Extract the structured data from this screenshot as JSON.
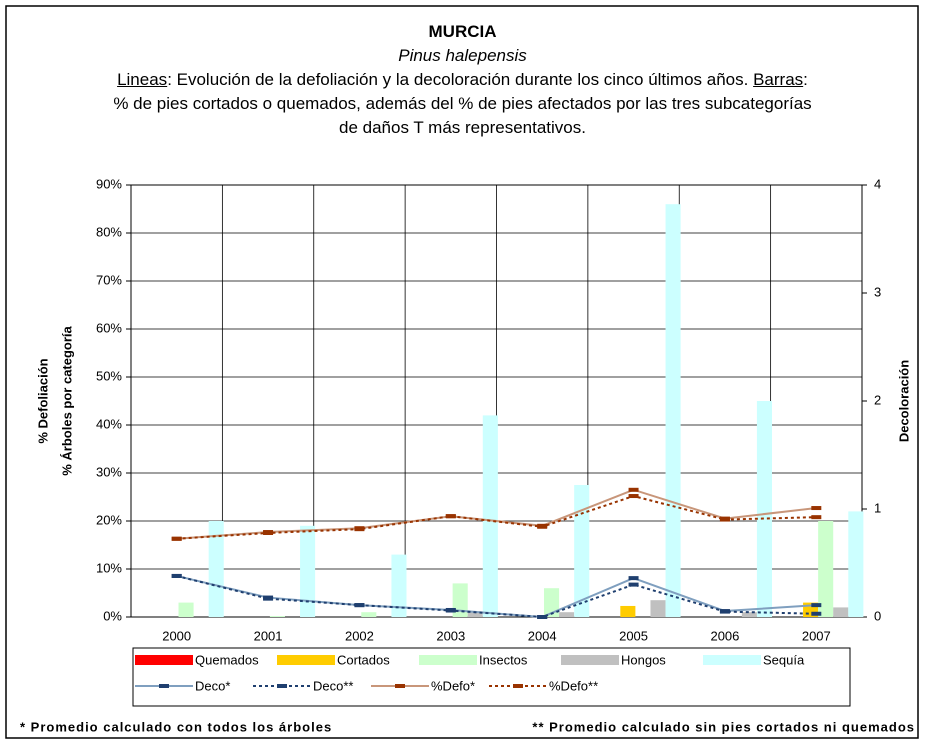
{
  "chart_data": {
    "type": "bar-line",
    "title": "MURCIA",
    "subtitle": "Pinus halepensis",
    "description": [
      "Lineas",
      ": Evolución de la defoliación y la decoloración durante los cinco últimos años. ",
      "Barras",
      ": % de pies cortados o quemados, además del % de pies afectados por las tres subcategorías de daños T más representativos."
    ],
    "ylabel": [
      "% Defoliación",
      "% Árboles por categoría"
    ],
    "y2label": "Decoloración",
    "categories": [
      "2000",
      "2001",
      "2002",
      "2003",
      "2004",
      "2005",
      "2006",
      "2007"
    ],
    "ylim": [
      0,
      90
    ],
    "yticks": [
      {
        "value": 0,
        "label": "0%"
      },
      {
        "value": 10,
        "label": "10%"
      },
      {
        "value": 20,
        "label": "20%"
      },
      {
        "value": 30,
        "label": "30%"
      },
      {
        "value": 40,
        "label": "40%"
      },
      {
        "value": 50,
        "label": "50%"
      },
      {
        "value": 60,
        "label": "60%"
      },
      {
        "value": 70,
        "label": "70%"
      },
      {
        "value": 80,
        "label": "80%"
      },
      {
        "value": 90,
        "label": "90%"
      }
    ],
    "y2lim": [
      0,
      4
    ],
    "y2ticks": [
      0,
      1,
      2,
      3,
      4
    ],
    "grid": true,
    "series": [
      {
        "name": "Quemados",
        "kind": "bar",
        "color": "#ff0000",
        "values": [
          0,
          0,
          0,
          0,
          0,
          0,
          0,
          0
        ]
      },
      {
        "name": "Cortados",
        "kind": "bar",
        "color": "#ffcc00",
        "values": [
          0,
          0,
          0,
          0,
          0,
          2.3,
          0,
          3
        ]
      },
      {
        "name": "Insectos",
        "kind": "bar",
        "color": "#ccffcc",
        "values": [
          3,
          0.2,
          1,
          7,
          6,
          0,
          0,
          20
        ]
      },
      {
        "name": "Hongos",
        "kind": "bar",
        "color": "#c0c0c0",
        "values": [
          0,
          0,
          0,
          1,
          1,
          3.5,
          1,
          2
        ]
      },
      {
        "name": "Sequía",
        "kind": "bar",
        "color": "#ccffff",
        "values": [
          20,
          19,
          13,
          42,
          27.5,
          86,
          45,
          22
        ]
      },
      {
        "name": "Deco*",
        "kind": "line",
        "axis": "y2",
        "color": "#7f9fbf",
        "marker_color": "#1f3f6f",
        "dash": false,
        "values": [
          0.38,
          0.18,
          0.11,
          0.065,
          0,
          0.36,
          0.055,
          0.11
        ]
      },
      {
        "name": "Deco**",
        "kind": "line",
        "axis": "y2",
        "color": "#1f3f6f",
        "marker_color": "#1f3f6f",
        "dash": true,
        "values": [
          0.38,
          0.17,
          0.11,
          0.06,
          0,
          0.3,
          0.05,
          0.03
        ]
      },
      {
        "name": "%Defo*",
        "kind": "line",
        "color": "#c8967a",
        "marker_color": "#993300",
        "dash": false,
        "values": [
          16.3,
          17.7,
          18.5,
          21,
          19,
          26.5,
          20.5,
          22.7
        ]
      },
      {
        "name": "%Defo**",
        "kind": "line",
        "color": "#993300",
        "marker_color": "#993300",
        "dash": true,
        "values": [
          16.3,
          17.5,
          18.3,
          21,
          18.8,
          25.2,
          20.3,
          20.8
        ]
      }
    ],
    "footnotes": [
      "* Promedio calculado con todos los árboles",
      "** Promedio calculado sin pies cortados ni quemados"
    ]
  }
}
